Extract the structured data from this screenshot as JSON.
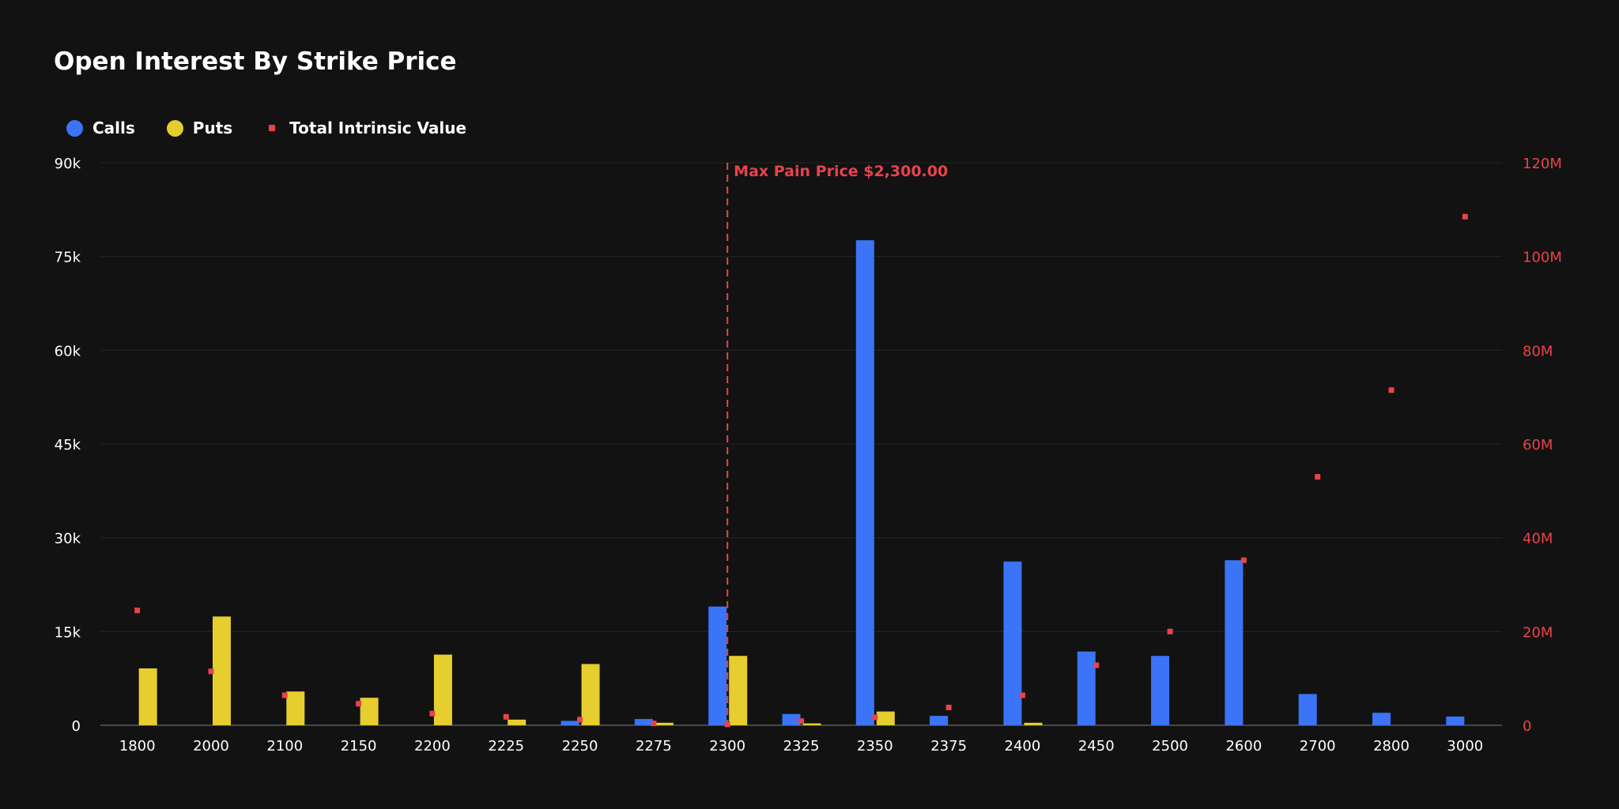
{
  "chart_data": {
    "type": "bar",
    "title": "Open Interest By Strike Price",
    "categories": [
      "1800",
      "2000",
      "2100",
      "2150",
      "2200",
      "2225",
      "2250",
      "2275",
      "2300",
      "2325",
      "2350",
      "2375",
      "2400",
      "2450",
      "2500",
      "2600",
      "2700",
      "2800",
      "3000"
    ],
    "series": [
      {
        "name": "Calls",
        "axis": "left",
        "color": "#3b74f7",
        "values": [
          0,
          0,
          0,
          0,
          0,
          0,
          700,
          1000,
          19000,
          1800,
          77600,
          1500,
          26200,
          11800,
          11100,
          26400,
          5000,
          2000,
          1400
        ]
      },
      {
        "name": "Puts",
        "axis": "left",
        "color": "#e5ce2e",
        "values": [
          9100,
          17400,
          5400,
          4400,
          11300,
          900,
          9800,
          400,
          11100,
          300,
          2200,
          0,
          400,
          0,
          0,
          0,
          0,
          0,
          0
        ]
      },
      {
        "name": "Total Intrinsic Value",
        "axis": "right",
        "type": "scatter",
        "color": "#e8434c",
        "values": [
          24500000,
          11500000,
          6400000,
          4600000,
          2500000,
          1800000,
          1200000,
          400000,
          200000,
          900000,
          1700000,
          3800000,
          6400000,
          12800000,
          20000000,
          35200000,
          53000000,
          71500000,
          108500000
        ]
      }
    ],
    "y_left": {
      "ylim": [
        0,
        90000
      ],
      "ticks": [
        "0",
        "15k",
        "30k",
        "45k",
        "60k",
        "75k",
        "90k"
      ]
    },
    "y_right": {
      "ylim": [
        0,
        120000000
      ],
      "ticks": [
        "0",
        "20M",
        "40M",
        "60M",
        "80M",
        "100M",
        "120M"
      ]
    },
    "annotation": {
      "label": "Max Pain Price $2,300.00",
      "category": "2300",
      "color": "#e8434c"
    },
    "grid": true,
    "legend_position": "top-left"
  }
}
